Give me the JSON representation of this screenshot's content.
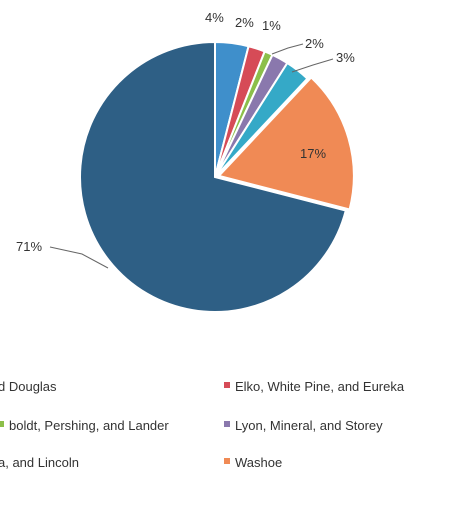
{
  "chart_data": {
    "type": "pie",
    "start_angle_deg": 0,
    "direction": "clockwise",
    "slice_border_color": "#ffffff",
    "slices": [
      {
        "name": "",
        "value": 4,
        "label": "4%",
        "color": "#3f8fcb"
      },
      {
        "name": "Elko, White Pine, and Eureka",
        "value": 2,
        "label": "2%",
        "color": "#d64b57"
      },
      {
        "name": "",
        "value": 1,
        "label": "1%",
        "color": "#8cbf4a"
      },
      {
        "name": "Lyon, Mineral, and Storey",
        "value": 2,
        "label": "2%",
        "color": "#8a78ad"
      },
      {
        "name": "",
        "value": 3,
        "label": "3%",
        "color": "#35a9c7"
      },
      {
        "name": "Washoe",
        "value": 17,
        "label": "17%",
        "color": "#f08a55"
      },
      {
        "name": "",
        "value": 71,
        "label": "71%",
        "color": "#2e5f85"
      }
    ],
    "legend": {
      "placement": "bottom",
      "rows": [
        [
          {
            "text": "d Douglas",
            "color": ""
          },
          {
            "text": "Elko, White Pine, and Eureka",
            "color": "#d64b57"
          }
        ],
        [
          {
            "text": "boldt, Pershing, and Lander",
            "color": "#8cbf4a"
          },
          {
            "text": "Lyon, Mineral, and Storey",
            "color": "#8a78ad"
          }
        ],
        [
          {
            "text": "a, and Lincoln",
            "color": ""
          },
          {
            "text": "Washoe",
            "color": "#f08a55"
          }
        ]
      ]
    }
  }
}
